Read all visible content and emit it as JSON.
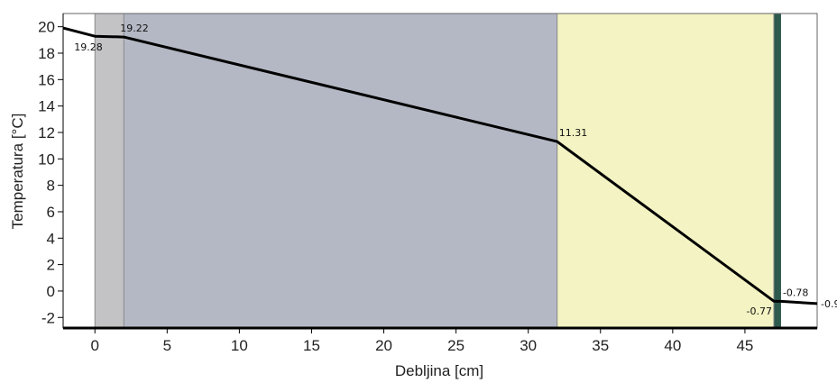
{
  "chart_data": {
    "type": "line",
    "xlabel": "Debljina [cm]",
    "ylabel": "Temperatura [°C]",
    "xlim": [
      -2.2,
      50
    ],
    "ylim": [
      -2.8,
      21
    ],
    "x_ticks": [
      0,
      5,
      10,
      15,
      20,
      25,
      30,
      35,
      40,
      45
    ],
    "y_ticks": [
      -2,
      0,
      2,
      4,
      6,
      8,
      10,
      12,
      14,
      16,
      18,
      20
    ],
    "grid": false,
    "layers": [
      {
        "from": 0,
        "to": 2,
        "color": "#c3c3c6"
      },
      {
        "from": 2,
        "to": 32,
        "color": "#b3b8c4"
      },
      {
        "from": 32,
        "to": 47,
        "color": "#f3f3c3"
      },
      {
        "from": 47,
        "to": 47.5,
        "color": "#2e5a4e"
      }
    ],
    "series": [
      {
        "x": [
          -2.2,
          0,
          2,
          32,
          47,
          47.5,
          50
        ],
        "y": [
          19.9,
          19.28,
          19.22,
          11.31,
          -0.77,
          -0.78,
          -0.95
        ]
      }
    ],
    "point_labels": [
      {
        "x": 0,
        "y": 19.28,
        "text": "19.28",
        "pos": "below"
      },
      {
        "x": 2,
        "y": 19.22,
        "text": "19.22",
        "pos": "above"
      },
      {
        "x": 32,
        "y": 11.31,
        "text": "11.31",
        "pos": "above-right"
      },
      {
        "x": 47,
        "y": -0.77,
        "text": "-0.77",
        "pos": "below-left"
      },
      {
        "x": 47.5,
        "y": -0.78,
        "text": "-0.78",
        "pos": "above-right"
      },
      {
        "x": 50,
        "y": -0.95,
        "text": "-0.9",
        "pos": "right"
      }
    ]
  }
}
